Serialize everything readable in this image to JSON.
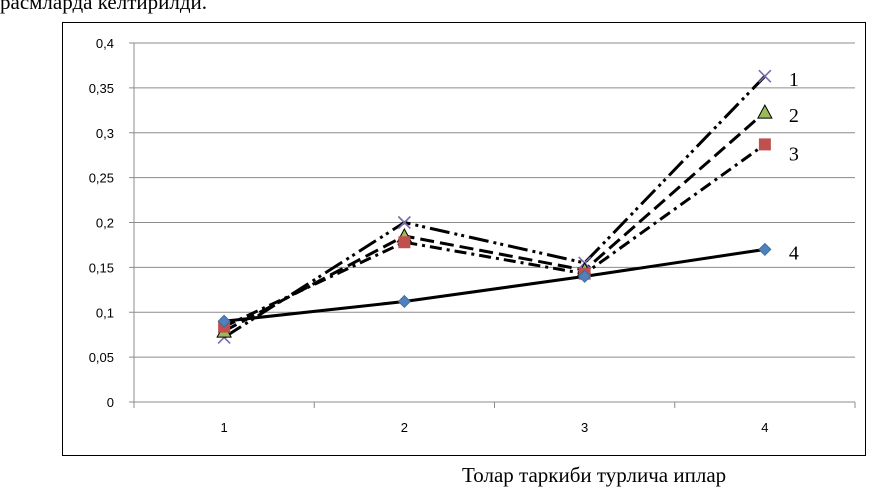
{
  "header": {
    "caption_fragment": "расмларда келтирилди."
  },
  "chart_data": {
    "type": "line",
    "title": "",
    "xlabel": "Толар таркиби турлича иплар",
    "ylabel": "",
    "categories": [
      "1",
      "2",
      "3",
      "4"
    ],
    "ylim": [
      0,
      0.4
    ],
    "yticks": [
      "0",
      "0,05",
      "0,1",
      "0,15",
      "0,2",
      "0,25",
      "0,3",
      "0,35",
      "0,4"
    ],
    "grid": "horizontal",
    "legend": "inline labels at right end of series",
    "series": [
      {
        "name": "1",
        "values": [
          0.072,
          0.2,
          0.155,
          0.363
        ],
        "line_style": "long-dash-dot-dot",
        "marker": "x",
        "marker_color": "#7b68b0"
      },
      {
        "name": "2",
        "values": [
          0.079,
          0.185,
          0.147,
          0.323
        ],
        "line_style": "dashed",
        "marker": "triangle",
        "marker_color": "#9bbb59"
      },
      {
        "name": "3",
        "values": [
          0.084,
          0.178,
          0.143,
          0.287
        ],
        "line_style": "dash-dot",
        "marker": "square",
        "marker_color": "#c0504d"
      },
      {
        "name": "4",
        "values": [
          0.09,
          0.112,
          0.14,
          0.17
        ],
        "line_style": "solid",
        "marker": "diamond",
        "marker_color": "#4f81bd"
      }
    ]
  }
}
